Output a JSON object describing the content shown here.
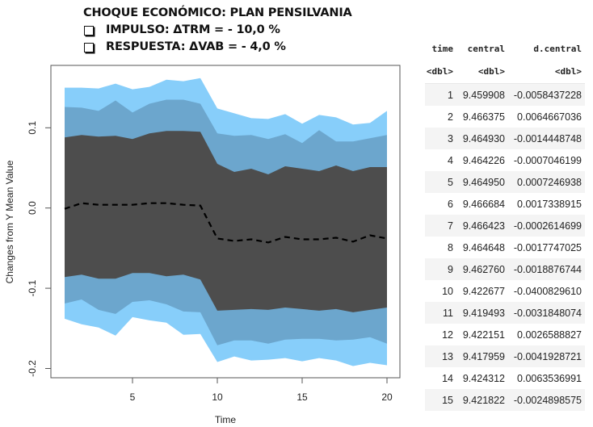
{
  "heading": {
    "title": "CHOQUE ECONÓMICO: PLAN PENSILVANIA",
    "bullets": [
      "IMPULSO: ΔTRM = - 10,0 %",
      "RESPUESTA: ΔVAB = - 4,0 %"
    ]
  },
  "chart_data": {
    "type": "area",
    "title": "",
    "xlabel": "Time",
    "ylabel": "Changes from Y Mean Value",
    "xlim": [
      0.2,
      20.8
    ],
    "ylim": [
      -0.21,
      0.18
    ],
    "xticks": [
      5,
      10,
      15,
      20
    ],
    "yticks": [
      -0.2,
      -0.1,
      0.0,
      0.1
    ],
    "ytick_labels": [
      "-0.2",
      "-0.1",
      "0.0",
      "0.1"
    ],
    "grid": false,
    "legend": "none",
    "x": [
      1,
      2,
      3,
      4,
      5,
      6,
      7,
      8,
      9,
      10,
      11,
      12,
      13,
      14,
      15,
      16,
      17,
      18,
      19,
      20
    ],
    "bands": [
      {
        "name": "outer",
        "color": "#87CEFA",
        "upper": [
          0.15,
          0.15,
          0.149,
          0.155,
          0.148,
          0.151,
          0.16,
          0.158,
          0.162,
          0.124,
          0.118,
          0.112,
          0.111,
          0.117,
          0.105,
          0.116,
          0.113,
          0.104,
          0.106,
          0.121
        ],
        "lower": [
          -0.138,
          -0.145,
          -0.149,
          -0.159,
          -0.136,
          -0.14,
          -0.143,
          -0.158,
          -0.157,
          -0.192,
          -0.185,
          -0.19,
          -0.189,
          -0.187,
          -0.191,
          -0.187,
          -0.19,
          -0.197,
          -0.193,
          -0.196
        ]
      },
      {
        "name": "middle",
        "color": "#6CA6CD",
        "upper": [
          0.126,
          0.125,
          0.121,
          0.134,
          0.119,
          0.13,
          0.135,
          0.135,
          0.13,
          0.093,
          0.09,
          0.091,
          0.086,
          0.092,
          0.081,
          0.097,
          0.083,
          0.083,
          0.087,
          0.091
        ],
        "lower": [
          -0.119,
          -0.114,
          -0.127,
          -0.132,
          -0.117,
          -0.115,
          -0.12,
          -0.129,
          -0.13,
          -0.171,
          -0.165,
          -0.165,
          -0.169,
          -0.164,
          -0.163,
          -0.163,
          -0.165,
          -0.164,
          -0.161,
          -0.169
        ]
      },
      {
        "name": "inner",
        "color": "#4D4D4D",
        "upper": [
          0.088,
          0.091,
          0.089,
          0.09,
          0.086,
          0.093,
          0.096,
          0.096,
          0.095,
          0.055,
          0.045,
          0.049,
          0.042,
          0.052,
          0.049,
          0.046,
          0.053,
          0.046,
          0.051,
          0.051
        ],
        "lower": [
          -0.086,
          -0.083,
          -0.088,
          -0.088,
          -0.081,
          -0.081,
          -0.085,
          -0.083,
          -0.089,
          -0.128,
          -0.127,
          -0.126,
          -0.127,
          -0.124,
          -0.126,
          -0.128,
          -0.126,
          -0.13,
          -0.127,
          -0.124
        ]
      }
    ],
    "series": [
      {
        "name": "central",
        "style": "dashed",
        "color": "#000000",
        "values": [
          -0.001,
          0.006,
          0.004,
          0.004,
          0.004,
          0.006,
          0.006,
          0.004,
          0.003,
          -0.038,
          -0.041,
          -0.039,
          -0.043,
          -0.036,
          -0.039,
          -0.039,
          -0.037,
          -0.042,
          -0.034,
          -0.038
        ]
      }
    ]
  },
  "table": {
    "columns": [
      "time",
      "central",
      "d.central"
    ],
    "types": [
      "<dbl>",
      "<dbl>",
      "<dbl>"
    ],
    "rows": [
      [
        "1",
        "9.459908",
        "-0.0058437228"
      ],
      [
        "2",
        "9.466375",
        "0.0064667036"
      ],
      [
        "3",
        "9.464930",
        "-0.0014448748"
      ],
      [
        "4",
        "9.464226",
        "-0.0007046199"
      ],
      [
        "5",
        "9.464950",
        "0.0007246938"
      ],
      [
        "6",
        "9.466684",
        "0.0017338915"
      ],
      [
        "7",
        "9.466423",
        "-0.0002614699"
      ],
      [
        "8",
        "9.464648",
        "-0.0017747025"
      ],
      [
        "9",
        "9.462760",
        "-0.0018876744"
      ],
      [
        "10",
        "9.422677",
        "-0.0400829610"
      ],
      [
        "11",
        "9.419493",
        "-0.0031848074"
      ],
      [
        "12",
        "9.422151",
        "0.0026588827"
      ],
      [
        "13",
        "9.417959",
        "-0.0041928721"
      ],
      [
        "14",
        "9.424312",
        "0.0063536991"
      ],
      [
        "15",
        "9.421822",
        "-0.0024898575"
      ]
    ]
  }
}
